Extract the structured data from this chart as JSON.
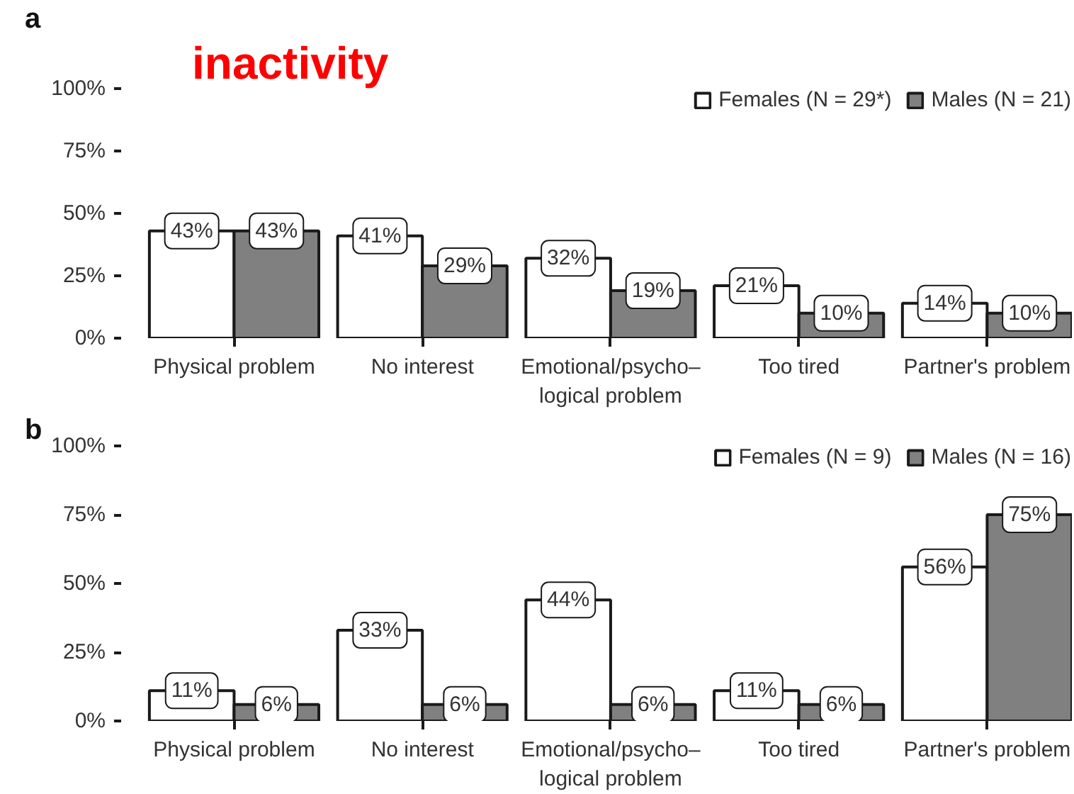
{
  "chart_data": [
    {
      "type": "bar",
      "title": "a",
      "subtitle": "inactivity",
      "categories": [
        "Physical problem",
        "No interest",
        "Emotional/psycho–\nlogical problem",
        "Too tired",
        "Partner's problem"
      ],
      "series": [
        {
          "name": "Females (N = 29*)",
          "color": "#ffffff",
          "values": [
            43,
            41,
            32,
            21,
            14
          ],
          "value_labels": [
            "43%",
            "41%",
            "32%",
            "21%",
            "14%"
          ]
        },
        {
          "name": "Males (N = 21)",
          "color": "#808080",
          "values": [
            43,
            29,
            19,
            10,
            10
          ],
          "value_labels": [
            "43%",
            "29%",
            "19%",
            "10%",
            "10%"
          ]
        }
      ],
      "ylim": [
        0,
        100
      ],
      "yticks": [
        {
          "value": 0,
          "label": "0%"
        },
        {
          "value": 25,
          "label": "25%"
        },
        {
          "value": 50,
          "label": "50%"
        },
        {
          "value": 75,
          "label": "75%"
        },
        {
          "value": 100,
          "label": "100%"
        }
      ],
      "legend": "top right",
      "grid": false
    },
    {
      "type": "bar",
      "title": "b",
      "categories": [
        "Physical problem",
        "No interest",
        "Emotional/psycho–\nlogical problem",
        "Too tired",
        "Partner's problem"
      ],
      "series": [
        {
          "name": "Females (N = 9)",
          "color": "#ffffff",
          "values": [
            11,
            33,
            44,
            11,
            56
          ],
          "value_labels": [
            "11%",
            "33%",
            "44%",
            "11%",
            "56%"
          ]
        },
        {
          "name": "Males (N = 16)",
          "color": "#808080",
          "values": [
            6,
            6,
            6,
            6,
            75
          ],
          "value_labels": [
            "6%",
            "6%",
            "6%",
            "6%",
            "75%"
          ]
        }
      ],
      "ylim": [
        0,
        100
      ],
      "yticks": [
        {
          "value": 0,
          "label": "0%"
        },
        {
          "value": 25,
          "label": "25%"
        },
        {
          "value": 50,
          "label": "50%"
        },
        {
          "value": 75,
          "label": "75%"
        },
        {
          "value": 100,
          "label": "100%"
        }
      ],
      "legend": "top right",
      "grid": false
    }
  ]
}
